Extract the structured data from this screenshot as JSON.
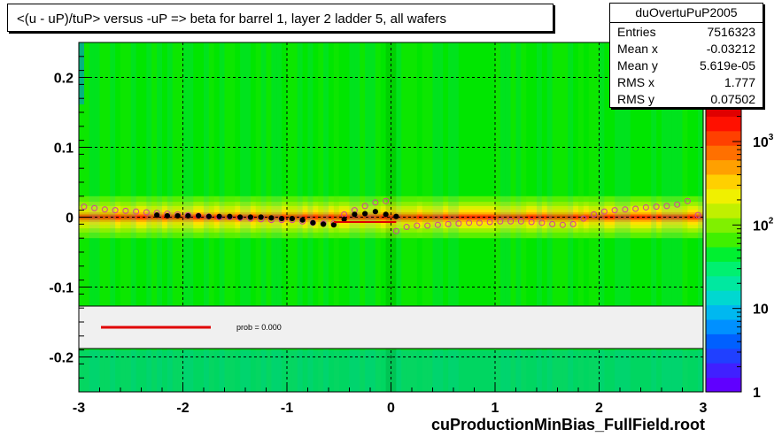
{
  "title": "<(u - uP)/tuP> versus  -uP => beta for barrel 1, layer 2 ladder 5, all wafers",
  "stats": {
    "name": "duOvertuPuP2005",
    "rows": [
      {
        "label": "Entries",
        "value": "7516323"
      },
      {
        "label": "Mean x",
        "value": "-0.03212"
      },
      {
        "label": "Mean y",
        "value": "5.619e-05"
      },
      {
        "label": "RMS x",
        "value": "1.777"
      },
      {
        "label": "RMS y",
        "value": "0.07502"
      }
    ]
  },
  "legend": {
    "fit_label": "prob = 0.000",
    "fit_color": "#e00000"
  },
  "footer": "cuProductionMinBias_FullField.root",
  "colors": {
    "plot_bg": "#00e600",
    "legend_bg": "#f0f0f0",
    "profile_open": "#d040a0",
    "profile_filled": "#000000"
  },
  "chart_data": {
    "type": "heatmap",
    "xlim": [
      -3,
      3
    ],
    "ylim": [
      -0.25,
      0.25
    ],
    "x_ticks": [
      "-3",
      "-2",
      "-1",
      "0",
      "1",
      "2",
      "3"
    ],
    "y_ticks": [
      "-0.2",
      "-0.1",
      "0",
      "0.1",
      "0.2"
    ],
    "grid": true,
    "colorbar": {
      "scale": "log",
      "range": [
        1,
        3000
      ],
      "tick_labels": [
        "1",
        "10",
        "10^2",
        "10^3"
      ]
    },
    "series": [
      {
        "marker": "open-circle",
        "x": [
          -2.95,
          -2.85,
          -2.75,
          -2.65,
          -2.55,
          -2.45,
          -2.35,
          -2.25,
          -2.15,
          -2.05,
          -1.95,
          -1.85,
          -1.75,
          -1.65,
          -1.55,
          -1.45,
          -1.35,
          -1.25,
          -1.15,
          -1.05,
          -0.95,
          -0.85,
          -0.75,
          -0.65,
          -0.55,
          -0.45,
          -0.35,
          -0.25,
          -0.15,
          -0.05,
          0.05,
          0.15,
          0.25,
          0.35,
          0.45,
          0.55,
          0.65,
          0.75,
          0.85,
          0.95,
          1.05,
          1.15,
          1.25,
          1.35,
          1.45,
          1.55,
          1.65,
          1.75,
          1.85,
          1.95,
          2.05,
          2.15,
          2.25,
          2.35,
          2.45,
          2.55,
          2.65,
          2.75,
          2.85,
          2.95
        ],
        "y": [
          0.015,
          0.013,
          0.011,
          0.01,
          0.009,
          0.008,
          0.007,
          0.006,
          0.005,
          0.004,
          0.003,
          0.002,
          0.001,
          0,
          0,
          -0.001,
          -0.002,
          -0.003,
          -0.004,
          -0.004,
          -0.004,
          -0.006,
          -0.008,
          -0.009,
          -0.009,
          0.004,
          0.01,
          0.016,
          0.021,
          0.023,
          -0.02,
          -0.014,
          -0.012,
          -0.012,
          -0.011,
          -0.01,
          -0.009,
          -0.008,
          -0.008,
          -0.007,
          -0.006,
          -0.006,
          -0.006,
          -0.007,
          -0.008,
          -0.01,
          -0.011,
          -0.01,
          -0.002,
          0.004,
          0.008,
          0.01,
          0.011,
          0.012,
          0.014,
          0.015,
          0.016,
          0.018,
          0.023,
          0.003
        ]
      },
      {
        "marker": "filled-circle",
        "x": [
          -2.25,
          -2.15,
          -2.05,
          -1.95,
          -1.85,
          -1.75,
          -1.65,
          -1.55,
          -1.45,
          -1.35,
          -1.25,
          -1.15,
          -1.05,
          -0.95,
          -0.85,
          -0.75,
          -0.65,
          -0.55,
          -0.45,
          -0.35,
          -0.25,
          -0.15,
          -0.05,
          0.05
        ],
        "y": [
          0.003,
          0.002,
          0.002,
          0.002,
          0.002,
          0.001,
          0.001,
          0.001,
          0,
          0,
          0,
          -0.001,
          -0.002,
          -0.002,
          -0.004,
          -0.008,
          -0.01,
          -0.011,
          -0.003,
          0.004,
          0.005,
          0.008,
          0.004,
          0.001
        ]
      },
      {
        "marker": "line",
        "x": [
          -0.55,
          0.05
        ],
        "y": [
          -0.007,
          -0.007
        ]
      }
    ]
  }
}
